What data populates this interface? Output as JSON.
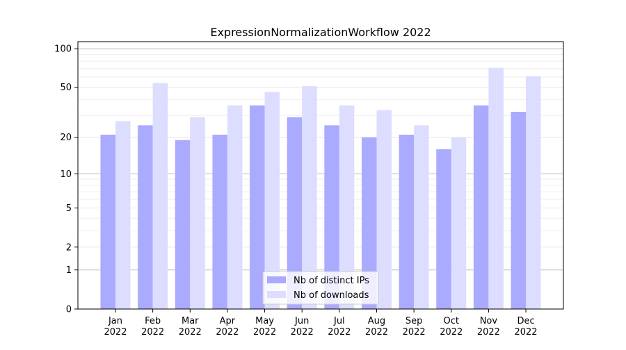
{
  "chart_data": {
    "type": "bar",
    "title": "ExpressionNormalizationWorkflow 2022",
    "xlabel": "",
    "ylabel": "",
    "yscale": "symlog (log10(1+y))",
    "ylim": [
      0,
      113
    ],
    "yticks": [
      0,
      1,
      2,
      5,
      10,
      20,
      50,
      100
    ],
    "grid": true,
    "legend_position": "bottom-center",
    "categories": [
      "Jan\n2022",
      "Feb\n2022",
      "Mar\n2022",
      "Apr\n2022",
      "May\n2022",
      "Jun\n2022",
      "Jul\n2022",
      "Aug\n2022",
      "Sep\n2022",
      "Oct\n2022",
      "Nov\n2022",
      "Dec\n2022"
    ],
    "series": [
      {
        "name": "Nb of distinct IPs",
        "color": "#aaaaff",
        "values": [
          21,
          25,
          19,
          21,
          36,
          29,
          25,
          20,
          21,
          16,
          36,
          32
        ]
      },
      {
        "name": "Nb of downloads",
        "color": "#ddddff",
        "values": [
          27,
          54,
          29,
          36,
          46,
          51,
          36,
          33,
          25,
          20,
          71,
          61
        ]
      }
    ]
  }
}
